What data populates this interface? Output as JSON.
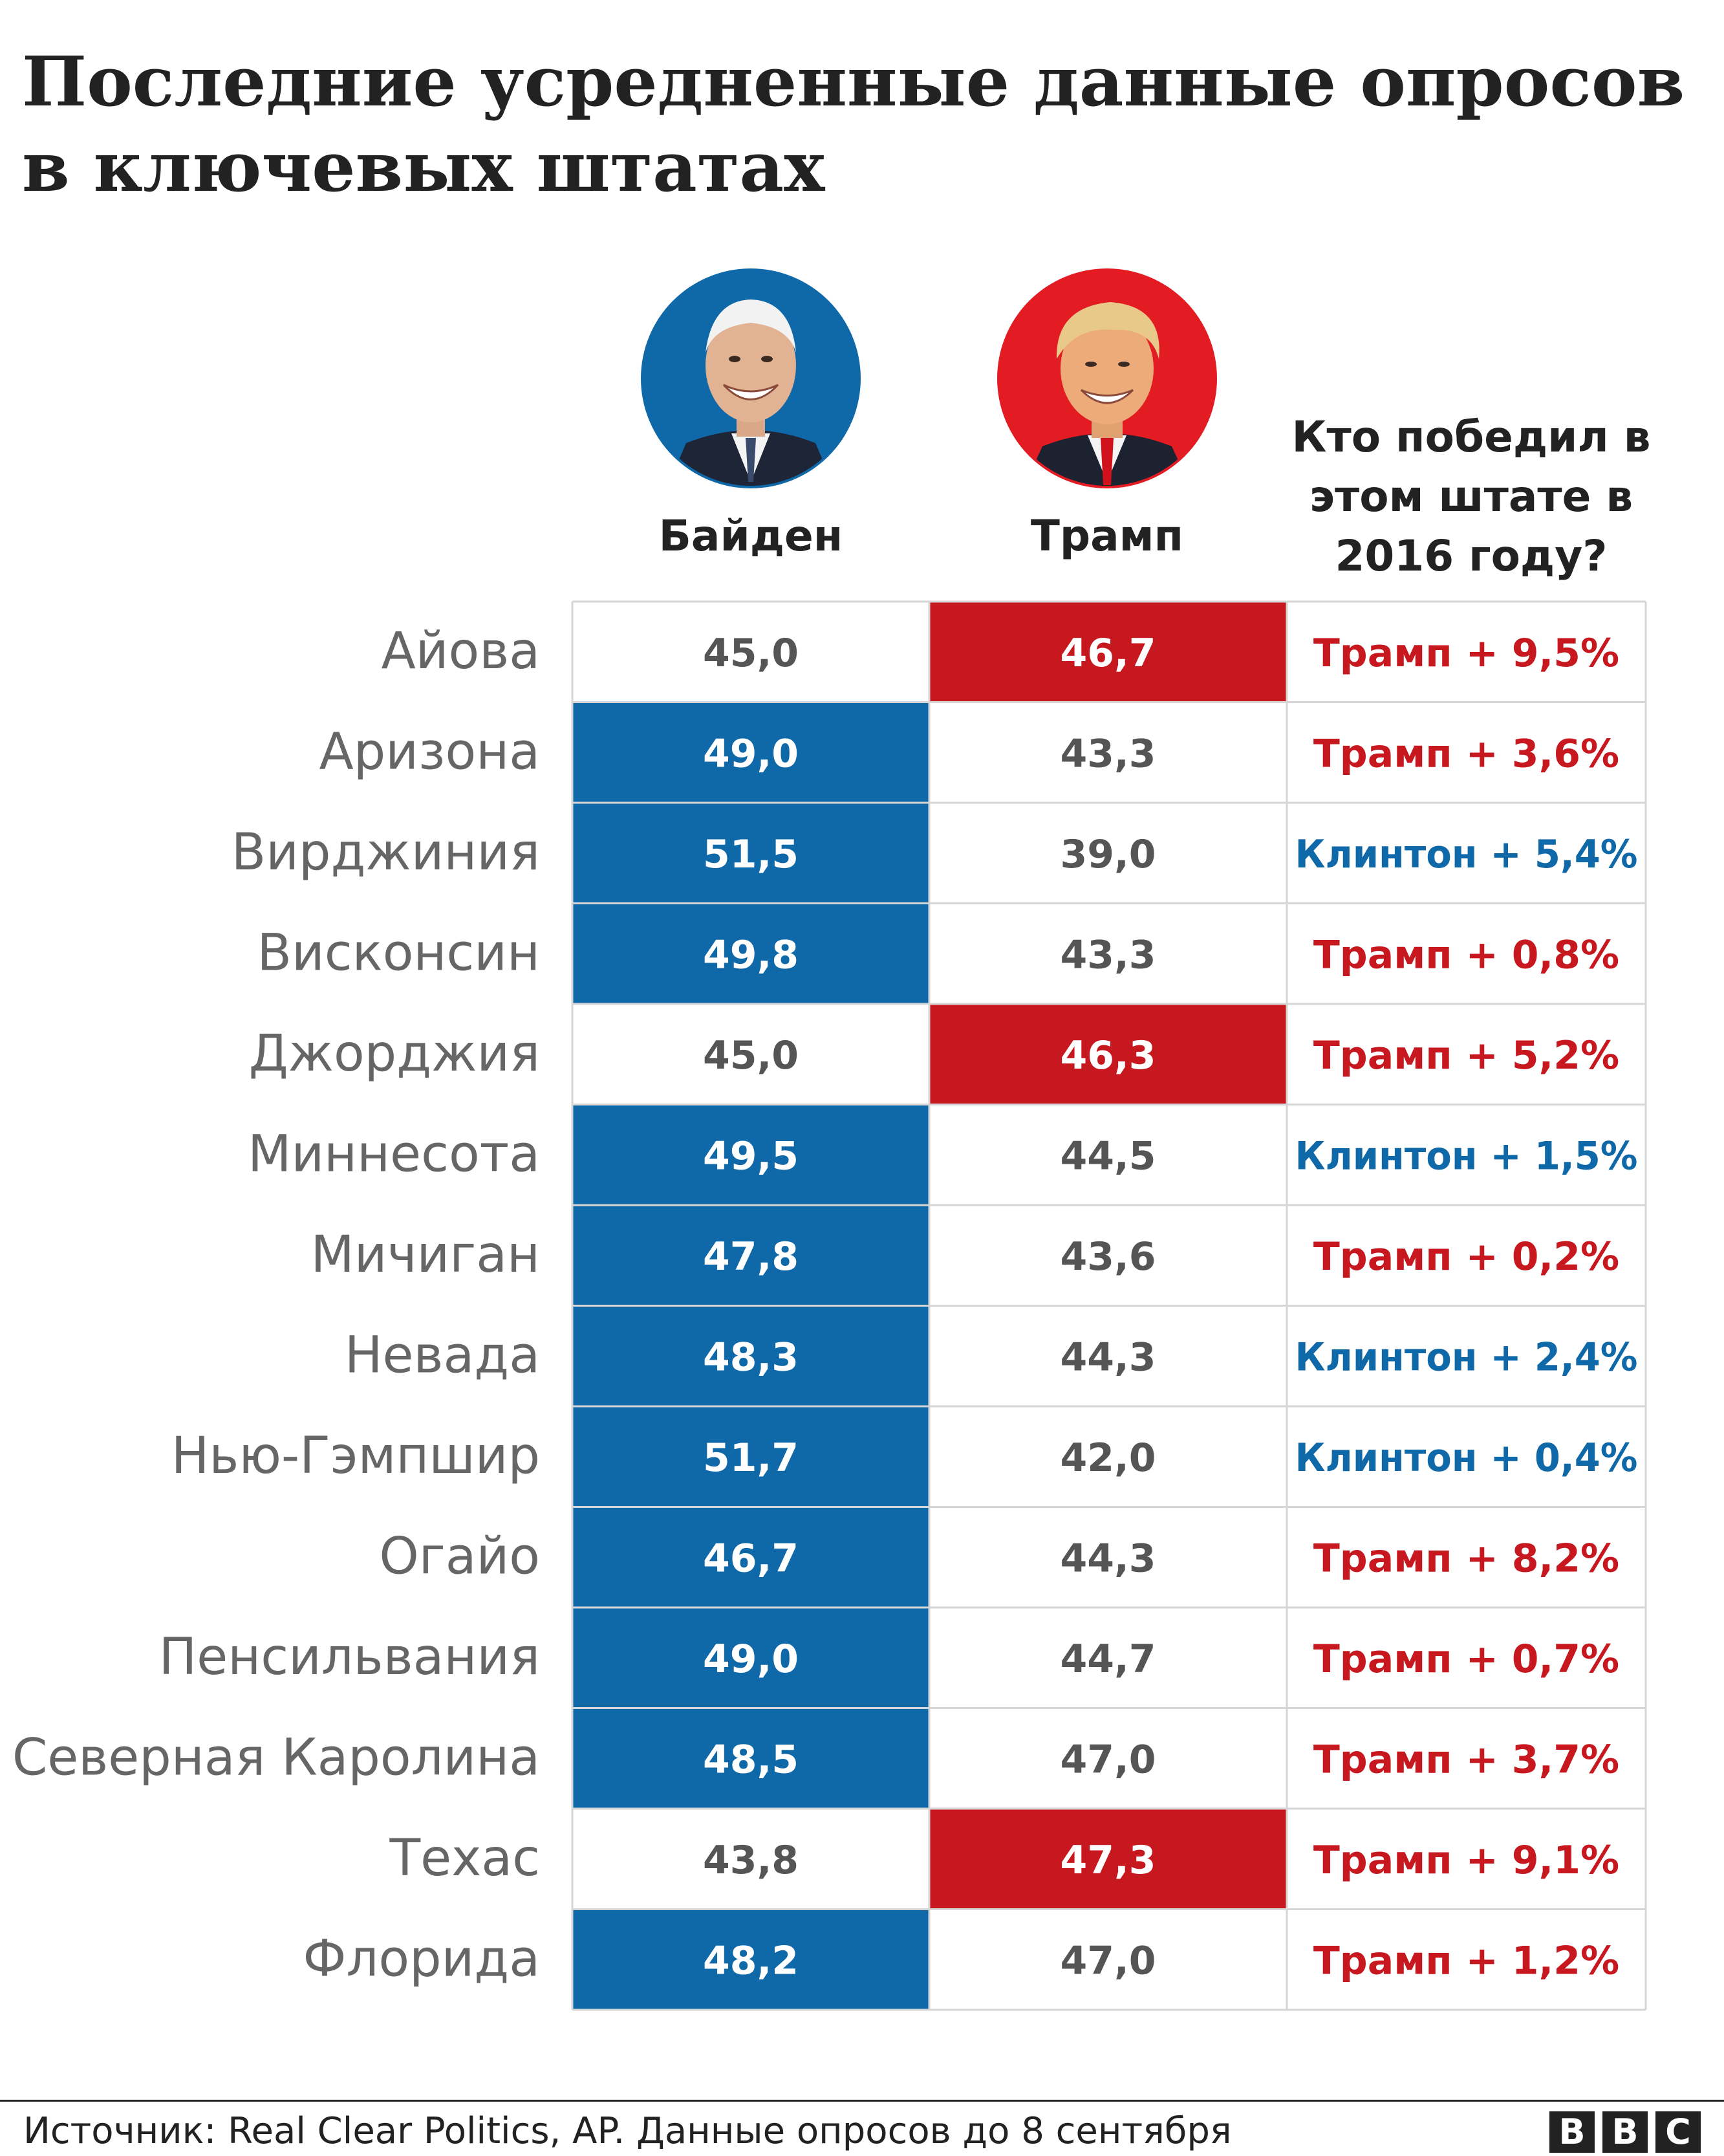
{
  "title": "Последние усредненные данные опросов в ключевых штатах",
  "candidates": {
    "biden": {
      "name": "Байден",
      "color": "#0f68a8"
    },
    "trump": {
      "name": "Трамп",
      "color": "#c8181f"
    }
  },
  "won_header": "Кто победил в этом штате в 2016 году?",
  "source": "Источник: Real Clear Politics, AP. Данные опросов до 8 сентября",
  "logo": [
    "B",
    "B",
    "C"
  ],
  "colors": {
    "biden": "#0f68a8",
    "trump": "#c8181f",
    "clinton_text": "#0f68a8",
    "trump_text": "#c8181f",
    "neutral_text": "#555555",
    "state_text": "#666666",
    "grid": "#d6d6d6"
  },
  "chart_data": {
    "type": "table",
    "title": "Последние усредненные данные опросов в ключевых штатах",
    "columns": [
      "Байден",
      "Трамп",
      "Кто победил в этом штате в 2016 году?"
    ],
    "rows": [
      {
        "state": "Айова",
        "biden": "45,0",
        "trump": "46,7",
        "winner": "trump",
        "result": "Трамп + 9,5%"
      },
      {
        "state": "Аризона",
        "biden": "49,0",
        "trump": "43,3",
        "winner": "trump",
        "result": "Трамп + 3,6%"
      },
      {
        "state": "Вирджиния",
        "biden": "51,5",
        "trump": "39,0",
        "winner": "clinton",
        "result": "Клинтон + 5,4%"
      },
      {
        "state": "Висконсин",
        "biden": "49,8",
        "trump": "43,3",
        "winner": "trump",
        "result": "Трамп + 0,8%"
      },
      {
        "state": "Джорджия",
        "biden": "45,0",
        "trump": "46,3",
        "winner": "trump",
        "result": "Трамп + 5,2%"
      },
      {
        "state": "Миннесота",
        "biden": "49,5",
        "trump": "44,5",
        "winner": "clinton",
        "result": "Клинтон + 1,5%"
      },
      {
        "state": "Мичиган",
        "biden": "47,8",
        "trump": "43,6",
        "winner": "trump",
        "result": "Трамп + 0,2%"
      },
      {
        "state": "Невада",
        "biden": "48,3",
        "trump": "44,3",
        "winner": "clinton",
        "result": "Клинтон + 2,4%"
      },
      {
        "state": "Нью-Гэмпшир",
        "biden": "51,7",
        "trump": "42,0",
        "winner": "clinton",
        "result": "Клинтон + 0,4%"
      },
      {
        "state": "Огайо",
        "biden": "46,7",
        "trump": "44,3",
        "winner": "trump",
        "result": "Трамп + 8,2%"
      },
      {
        "state": "Пенсильвания",
        "biden": "49,0",
        "trump": "44,7",
        "winner": "trump",
        "result": "Трамп + 0,7%"
      },
      {
        "state": "Северная Каролина",
        "biden": "48,5",
        "trump": "47,0",
        "winner": "trump",
        "result": "Трамп + 3,7%"
      },
      {
        "state": "Техас",
        "biden": "43,8",
        "trump": "47,3",
        "winner": "trump",
        "result": "Трамп + 9,1%"
      },
      {
        "state": "Флорида",
        "biden": "48,2",
        "trump": "47,0",
        "winner": "trump",
        "result": "Трамп + 1,2%"
      }
    ]
  }
}
